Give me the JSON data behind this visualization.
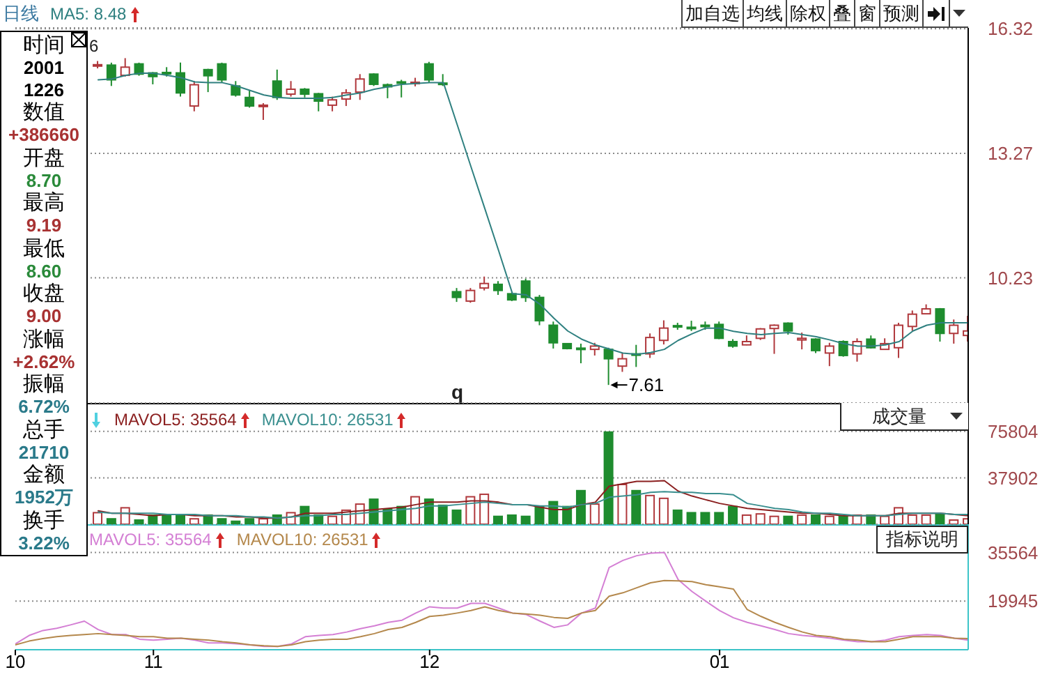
{
  "chart_data": [
    {
      "type": "candlestick",
      "title": "日线",
      "categories": [
        "10",
        null,
        null,
        null,
        null,
        null,
        null,
        null,
        null,
        null,
        "11",
        null,
        null,
        null,
        null,
        null,
        null,
        null,
        null,
        null,
        null,
        null,
        null,
        null,
        null,
        null,
        null,
        null,
        null,
        null,
        "12",
        null,
        null,
        null,
        null,
        null,
        null,
        null,
        null,
        null,
        null,
        null,
        null,
        null,
        null,
        null,
        null,
        null,
        null,
        null,
        null,
        "01",
        null,
        null,
        null,
        null,
        null,
        null,
        null,
        null,
        null,
        null,
        null,
        null,
        null,
        null,
        null,
        null,
        null,
        null
      ],
      "ohlc": [
        null,
        null,
        null,
        null,
        null,
        null,
        [
          15.42,
          15.53,
          15.35,
          15.44
        ],
        [
          15.43,
          15.49,
          14.92,
          15.07
        ],
        [
          15.18,
          15.6,
          15.15,
          15.38
        ],
        [
          15.46,
          15.49,
          15.17,
          15.21
        ],
        [
          15.24,
          15.26,
          14.96,
          15.15
        ],
        [
          15.25,
          15.38,
          15.15,
          15.23
        ],
        [
          15.24,
          15.49,
          14.66,
          14.75
        ],
        [
          14.43,
          15.04,
          14.3,
          14.95
        ],
        [
          15.32,
          15.34,
          14.77,
          15.17
        ],
        [
          15.46,
          15.49,
          15.0,
          15.07
        ],
        [
          14.92,
          15.04,
          14.66,
          14.7
        ],
        [
          14.64,
          14.81,
          14.39,
          14.43
        ],
        [
          14.42,
          14.5,
          14.09,
          14.45
        ],
        [
          15.04,
          15.32,
          14.58,
          14.64
        ],
        [
          14.72,
          15.04,
          14.66,
          14.84
        ],
        [
          14.84,
          14.87,
          14.64,
          14.72
        ],
        [
          14.73,
          14.75,
          14.3,
          14.55
        ],
        [
          14.45,
          14.66,
          14.3,
          14.58
        ],
        [
          14.6,
          14.84,
          14.43,
          14.75
        ],
        [
          14.77,
          15.21,
          14.58,
          15.09
        ],
        [
          15.21,
          15.23,
          14.92,
          14.96
        ],
        [
          14.95,
          14.98,
          14.62,
          14.9
        ],
        [
          15.02,
          15.07,
          14.64,
          14.99
        ],
        [
          14.99,
          15.12,
          14.91,
          15.01
        ],
        [
          15.46,
          15.51,
          15.0,
          15.07
        ],
        [
          14.99,
          15.21,
          14.92,
          14.97
        ],
        [
          9.89,
          9.98,
          9.64,
          9.75
        ],
        [
          9.66,
          9.98,
          9.62,
          9.92
        ],
        [
          9.98,
          10.26,
          9.92,
          10.09
        ],
        [
          10.07,
          10.15,
          9.81,
          9.92
        ],
        [
          9.84,
          9.87,
          9.66,
          9.69
        ],
        [
          10.15,
          10.21,
          9.64,
          9.75
        ],
        [
          9.75,
          9.81,
          9.07,
          9.18
        ],
        [
          9.07,
          9.16,
          8.5,
          8.64
        ],
        [
          8.62,
          8.63,
          8.48,
          8.5
        ],
        [
          8.51,
          8.62,
          8.14,
          8.49
        ],
        [
          8.48,
          8.64,
          8.33,
          8.56
        ],
        [
          8.48,
          8.52,
          7.61,
          8.25
        ],
        [
          8.07,
          8.39,
          7.93,
          8.25
        ],
        [
          8.37,
          8.59,
          8.05,
          8.34
        ],
        [
          8.37,
          8.87,
          8.27,
          8.77
        ],
        [
          8.7,
          9.19,
          8.6,
          9.0
        ],
        [
          9.06,
          9.13,
          8.96,
          9.04
        ],
        [
          9.02,
          9.18,
          8.93,
          9.0
        ],
        [
          9.07,
          9.16,
          8.96,
          9.05
        ],
        [
          9.09,
          9.16,
          8.73,
          8.75
        ],
        [
          8.67,
          8.73,
          8.52,
          8.56
        ],
        [
          8.59,
          8.82,
          8.58,
          8.67
        ],
        [
          8.75,
          9.0,
          8.71,
          8.98
        ],
        [
          8.99,
          9.09,
          8.37,
          9.07
        ],
        [
          9.12,
          9.14,
          8.84,
          8.93
        ],
        [
          8.71,
          8.89,
          8.48,
          8.75
        ],
        [
          8.73,
          8.75,
          8.39,
          8.45
        ],
        [
          8.39,
          8.64,
          8.07,
          8.56
        ],
        [
          8.67,
          8.7,
          8.3,
          8.33
        ],
        [
          8.37,
          8.75,
          8.18,
          8.67
        ],
        [
          8.73,
          8.82,
          8.5,
          8.52
        ],
        [
          8.48,
          8.75,
          8.47,
          8.62
        ],
        [
          8.52,
          9.13,
          8.27,
          9.07
        ],
        [
          9.04,
          9.43,
          8.93,
          9.34
        ],
        [
          9.35,
          9.58,
          9.34,
          9.47
        ],
        [
          9.47,
          9.49,
          8.67,
          8.87
        ],
        [
          8.87,
          9.21,
          8.62,
          9.07
        ],
        [
          8.82,
          9.3,
          8.67,
          8.93
        ]
      ],
      "colors": [
        null,
        null,
        null,
        null,
        null,
        null,
        "#b0383c",
        "#1e8c2e",
        "#b0383c",
        "#1e8c2e",
        "#1e8c2e",
        "#1e8c2e",
        "#1e8c2e",
        "#b0383c",
        "#1e8c2e",
        "#1e8c2e",
        "#1e8c2e",
        "#1e8c2e",
        "#b0383c",
        "#1e8c2e",
        "#b0383c",
        "#1e8c2e",
        "#1e8c2e",
        "#b0383c",
        "#b0383c",
        "#b0383c",
        "#1e8c2e",
        "#1e8c2e",
        "#1e8c2e",
        "#b0383c",
        "#1e8c2e",
        "#1e8c2e",
        "#1e8c2e",
        "#b0383c",
        "#b0383c",
        "#1e8c2e",
        "#1e8c2e",
        "#1e8c2e",
        "#1e8c2e",
        "#1e8c2e",
        "#1e8c2e",
        "#1e8c2e",
        "#b0383c",
        "#1e8c2e",
        "#b0383c",
        "#1e8c2e",
        "#b0383c",
        "#b0383c",
        "#1e8c2e",
        "#1e8c2e",
        "#1e8c2e",
        "#1e8c2e",
        "#1e8c2e",
        "#b0383c",
        "#b0383c",
        "#b0383c",
        "#1e8c2e",
        "#b0383c",
        "#1e8c2e",
        "#b0383c",
        "#1e8c2e",
        "#b0383c",
        "#1e8c2e",
        "#b0383c",
        "#b0383c",
        "#b0383c",
        "#b0383c",
        "#1e8c2e",
        "#b0383c",
        "#b0383c"
      ],
      "series": [
        {
          "type": "line",
          "name": "MA5: 8.48",
          "color": "#2f8080",
          "values": [
            null,
            null,
            null,
            null,
            null,
            null,
            15.07,
            15.09,
            15.18,
            15.23,
            15.23,
            15.18,
            15.12,
            15.02,
            15.0,
            15.0,
            14.92,
            14.81,
            14.7,
            14.64,
            14.62,
            14.62,
            14.62,
            14.64,
            14.7,
            14.75,
            14.84,
            14.9,
            14.96,
            14.98,
            15.0,
            15.0,
            13.97,
            12.94,
            11.92,
            10.89,
            9.84,
            9.81,
            9.58,
            9.24,
            8.93,
            8.73,
            8.59,
            8.49,
            8.39,
            8.36,
            8.4,
            8.48,
            8.7,
            8.86,
            9.0,
            9.0,
            8.92,
            8.87,
            8.84,
            8.87,
            8.89,
            8.84,
            8.79,
            8.71,
            8.62,
            8.56,
            8.56,
            8.59,
            8.67,
            8.93,
            9.07,
            9.13,
            9.13,
            9.13
          ]
        }
      ],
      "ylim": [
        7.17,
        16.34
      ],
      "yticks": [
        16.32,
        13.27,
        10.23
      ],
      "grid": "y",
      "legend": "top left",
      "tick_labels": "y",
      "annotations": [
        "7.61",
        "6",
        "q"
      ]
    },
    {
      "type": "bar",
      "title": "成交量",
      "categories": [
        "10",
        null,
        null,
        null,
        null,
        null,
        null,
        null,
        null,
        null,
        "11",
        null,
        null,
        null,
        null,
        null,
        null,
        null,
        null,
        null,
        null,
        null,
        null,
        null,
        null,
        null,
        null,
        null,
        null,
        null,
        "12",
        null,
        null,
        null,
        null,
        null,
        null,
        null,
        null,
        null,
        null,
        null,
        null,
        null,
        null,
        null,
        null,
        null,
        null,
        null,
        null,
        "01",
        null,
        null,
        null,
        null,
        null,
        null,
        null,
        null,
        null,
        null,
        null,
        null,
        null,
        null,
        null,
        null,
        null,
        null
      ],
      "series": [
        {
          "values": [
            null,
            null,
            null,
            null,
            null,
            null,
            10000,
            5000,
            14000,
            4000,
            8000,
            8000,
            8000,
            5000,
            8000,
            5000,
            3000,
            5000,
            5000,
            8000,
            10000,
            15000,
            8000,
            7000,
            12000,
            17000,
            21000,
            13000,
            15000,
            23000,
            21000,
            16000,
            12000,
            23000,
            25000,
            7000,
            8000,
            7000,
            15000,
            19000,
            15000,
            28000,
            17000,
            75804,
            33000,
            28000,
            24000,
            21710,
            12000,
            10000,
            10000,
            10000,
            15000,
            8000,
            9000,
            7000,
            7000,
            8000,
            8000,
            7000,
            7000,
            8000,
            8000,
            7000,
            14000,
            8000,
            8000,
            9000,
            4000,
            5000
          ],
          "colors": [
            null,
            null,
            null,
            null,
            null,
            null,
            "#b0383c",
            "#1e8c2e",
            "#b0383c",
            "#1e8c2e",
            "#1e8c2e",
            "#1e8c2e",
            "#1e8c2e",
            "#b0383c",
            "#1e8c2e",
            "#1e8c2e",
            "#1e8c2e",
            "#1e8c2e",
            "#b0383c",
            "#1e8c2e",
            "#b0383c",
            "#1e8c2e",
            "#1e8c2e",
            "#b0383c",
            "#b0383c",
            "#b0383c",
            "#1e8c2e",
            "#1e8c2e",
            "#1e8c2e",
            "#b0383c",
            "#1e8c2e",
            "#1e8c2e",
            "#1e8c2e",
            "#b0383c",
            "#b0383c",
            "#1e8c2e",
            "#1e8c2e",
            "#1e8c2e",
            "#1e8c2e",
            "#1e8c2e",
            "#1e8c2e",
            "#1e8c2e",
            "#b0383c",
            "#1e8c2e",
            "#b0383c",
            "#1e8c2e",
            "#b0383c",
            "#b0383c",
            "#1e8c2e",
            "#1e8c2e",
            "#1e8c2e",
            "#1e8c2e",
            "#1e8c2e",
            "#b0383c",
            "#b0383c",
            "#b0383c",
            "#1e8c2e",
            "#b0383c",
            "#1e8c2e",
            "#b0383c",
            "#1e8c2e",
            "#b0383c",
            "#1e8c2e",
            "#b0383c",
            "#b0383c",
            "#b0383c",
            "#b0383c",
            "#1e8c2e",
            "#b0383c",
            "#b0383c"
          ]
        },
        {
          "type": "line",
          "name": "MAVOL5: 35564",
          "color": "#8b1f1f",
          "values": [
            null,
            null,
            null,
            null,
            null,
            null,
            11000,
            9000,
            9000,
            8000,
            7000,
            8000,
            8000,
            7000,
            7000,
            7000,
            6000,
            6000,
            5000,
            5000,
            6000,
            9000,
            9000,
            9000,
            10000,
            11000,
            12000,
            13000,
            14000,
            16000,
            18000,
            18000,
            18000,
            19000,
            19000,
            18000,
            16000,
            16000,
            14000,
            12000,
            12000,
            16000,
            18000,
            31000,
            33000,
            35000,
            35000,
            35564,
            27000,
            23000,
            20000,
            17000,
            15000,
            13000,
            12000,
            11000,
            10000,
            9000,
            9000,
            8000,
            7000,
            7000,
            7000,
            7000,
            9000,
            9000,
            9000,
            9000,
            8000,
            7000
          ]
        },
        {
          "type": "line",
          "name": "MAVOL10: 26531",
          "color": "#3a8f8f",
          "values": [
            null,
            null,
            null,
            null,
            null,
            null,
            10000,
            9000,
            9000,
            9000,
            9000,
            8000,
            8000,
            8000,
            7000,
            7000,
            7000,
            6000,
            6000,
            5000,
            6000,
            7000,
            7000,
            8000,
            8000,
            9000,
            10000,
            11000,
            12000,
            13000,
            15000,
            15000,
            16000,
            17000,
            18000,
            17000,
            16000,
            16000,
            15000,
            15000,
            14000,
            16000,
            17000,
            22000,
            23000,
            24000,
            26000,
            26531,
            26000,
            26000,
            25000,
            25000,
            24000,
            17000,
            15000,
            13000,
            12000,
            10000,
            9000,
            9000,
            8000,
            7000,
            7000,
            7000,
            8000,
            9000,
            9000,
            9000,
            8000,
            8000
          ]
        }
      ],
      "ylim": [
        0,
        99000
      ],
      "yticks": [
        75804,
        37902
      ],
      "grid": "y",
      "legend": "top left",
      "tick_labels": "y"
    },
    {
      "type": "line",
      "categories": [
        "10",
        null,
        null,
        null,
        null,
        null,
        null,
        null,
        null,
        null,
        "11",
        null,
        null,
        null,
        null,
        null,
        null,
        null,
        null,
        null,
        null,
        null,
        null,
        null,
        null,
        null,
        null,
        null,
        null,
        null,
        "12",
        null,
        null,
        null,
        null,
        null,
        null,
        null,
        null,
        null,
        null,
        null,
        null,
        null,
        null,
        null,
        null,
        null,
        null,
        null,
        null,
        "01",
        null,
        null,
        null,
        null,
        null,
        null,
        null,
        null,
        null,
        null,
        null,
        null,
        null,
        null,
        null,
        null,
        null,
        null
      ],
      "series": [
        {
          "name": "MAVOL5: 35564",
          "color": "#d47fd4",
          "values": [
            6200,
            8900,
            10500,
            11200,
            12300,
            13500,
            10800,
            9200,
            9200,
            7700,
            7400,
            7700,
            8000,
            7400,
            6500,
            6500,
            6200,
            5900,
            5400,
            5400,
            6200,
            8500,
            8900,
            9200,
            10000,
            11100,
            12000,
            13100,
            13800,
            16100,
            18100,
            17700,
            17700,
            19200,
            19200,
            17700,
            16100,
            15600,
            13500,
            11500,
            12300,
            16100,
            17700,
            30700,
            33000,
            34500,
            35300,
            35564,
            26800,
            23000,
            19900,
            16900,
            14600,
            13100,
            12000,
            10800,
            9500,
            8900,
            8500,
            8000,
            7400,
            6900,
            6900,
            7400,
            8500,
            8900,
            9200,
            8900,
            8000,
            7400
          ]
        },
        {
          "name": "MAVOL10: 26531",
          "color": "#b4884c",
          "values": [
            5900,
            7100,
            7900,
            8500,
            8900,
            9200,
            9500,
            9200,
            8900,
            8500,
            8500,
            8000,
            8000,
            7700,
            7400,
            6900,
            6500,
            5900,
            5600,
            5400,
            5900,
            6900,
            7400,
            7700,
            7700,
            8500,
            9500,
            10800,
            11500,
            13100,
            15000,
            15400,
            16100,
            16900,
            18100,
            16900,
            16100,
            15800,
            15400,
            14700,
            14400,
            16100,
            16900,
            21500,
            22600,
            24200,
            25800,
            26531,
            26400,
            26200,
            25200,
            24500,
            23800,
            17200,
            15000,
            13100,
            11500,
            10000,
            8900,
            8500,
            7700,
            7400,
            6900,
            6900,
            7700,
            8500,
            8500,
            8500,
            8000,
            7900
          ]
        }
      ],
      "ylim": [
        4326,
        44600
      ],
      "yticks": [
        35564,
        19945
      ],
      "grid": "y",
      "legend": "top left",
      "annotations": [
        "指标说明"
      ]
    },
    {
      "type": "other",
      "categories": [
        "时间",
        "数值",
        "开盘",
        "最高",
        "最低",
        "收盘",
        "涨幅",
        "振幅",
        "总手",
        "金额",
        "换手"
      ],
      "value_labels": [
        "2001 1226",
        "+386660",
        "8.70",
        "9.19",
        "8.60",
        "9.00",
        "+2.62%",
        "6.72%",
        "21710",
        "1952万",
        "3.22%"
      ],
      "colors": [
        "#000000",
        "#a83232",
        "#2a8a3a",
        "#a83232",
        "#2a8a3a",
        "#a83232",
        "#a83232",
        "#2a7a8a",
        "#2a7a8a",
        "#2a7a8a",
        "#2a7a8a"
      ]
    },
    {
      "type": "other",
      "annotations": [
        "加自选",
        "均线",
        "除权",
        "叠",
        "窗",
        "预测"
      ]
    }
  ]
}
